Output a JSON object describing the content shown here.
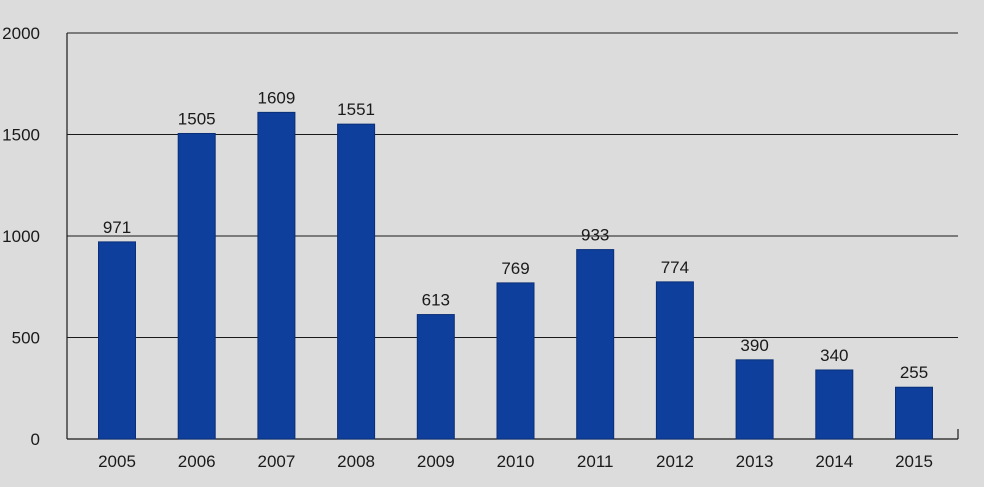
{
  "chart_data": {
    "type": "bar",
    "title": "",
    "xlabel": "",
    "ylabel": "",
    "categories": [
      "2005",
      "2006",
      "2007",
      "2008",
      "2009",
      "2010",
      "2011",
      "2012",
      "2013",
      "2014",
      "2015"
    ],
    "values": [
      971,
      1505,
      1609,
      1551,
      613,
      769,
      933,
      774,
      390,
      340,
      255
    ],
    "value_labels": [
      "971",
      "1505",
      "1609",
      "1551",
      "613",
      "769",
      "933",
      "774",
      "390",
      "340",
      "255"
    ],
    "ylim": [
      0,
      2000
    ],
    "yticks": [
      0,
      500,
      1000,
      1500,
      2000
    ],
    "ytick_labels": [
      "0",
      "500",
      "1000",
      "1500",
      "2000"
    ],
    "grid": "horizontal",
    "legend": "none",
    "colors": {
      "bar": "#0e3f9c",
      "bar_edge": "#0a2f78",
      "background": "#dcdcdc",
      "grid": "#1a1a1a",
      "text": "#1a1a1a"
    }
  }
}
